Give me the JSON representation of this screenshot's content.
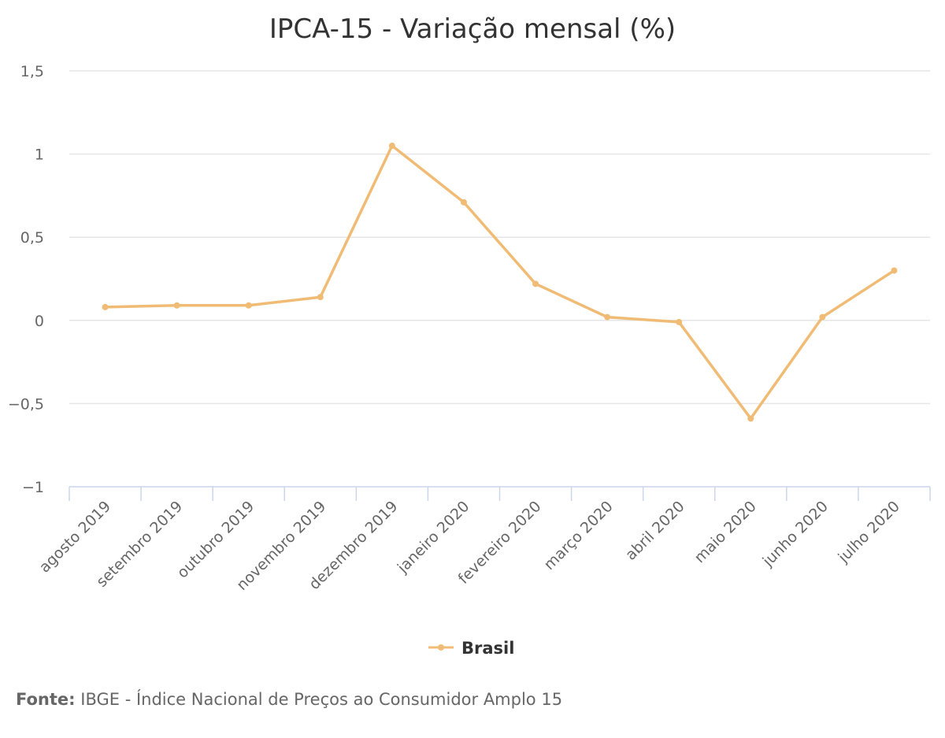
{
  "chart_data": {
    "type": "line",
    "title": "IPCA-15 - Variação mensal (%)",
    "categories": [
      "agosto 2019",
      "setembro 2019",
      "outubro 2019",
      "novembro 2019",
      "dezembro 2019",
      "janeiro 2020",
      "fevereiro 2020",
      "março 2020",
      "abril 2020",
      "maio 2020",
      "junho 2020",
      "julho 2020"
    ],
    "series": [
      {
        "name": "Brasil",
        "values": [
          0.08,
          0.09,
          0.09,
          0.14,
          1.05,
          0.71,
          0.22,
          0.02,
          -0.01,
          -0.59,
          0.02,
          0.3
        ],
        "color": "#f0bc75"
      }
    ],
    "ylim": [
      -1,
      1.5
    ],
    "yticks": [
      1.5,
      1,
      0.5,
      0,
      -0.5,
      -1
    ],
    "ytick_labels": [
      "1,5",
      "1",
      "0,5",
      "0",
      "−0,5",
      "−1"
    ],
    "grid": true,
    "legend_position": "bottom-center"
  },
  "source": {
    "label": "Fonte:",
    "text": "IBGE - Índice Nacional de Preços ao Consumidor Amplo 15"
  }
}
